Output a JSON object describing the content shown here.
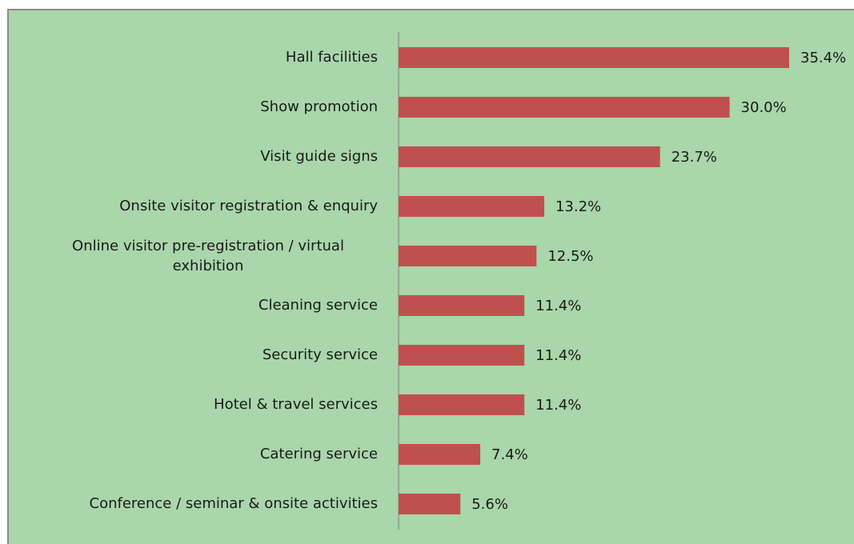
{
  "chart_data": {
    "type": "bar",
    "orientation": "horizontal",
    "categories": [
      "Hall facilities",
      "Show promotion",
      "Visit guide signs",
      "Onsite visitor registration & enquiry",
      "Online visitor pre-registration / virtual exhibition",
      "Cleaning service",
      "Security service",
      "Hotel & travel services",
      "Catering service",
      "Conference / seminar & onsite activities"
    ],
    "values": [
      35.4,
      30.0,
      23.7,
      13.2,
      12.5,
      11.4,
      11.4,
      11.4,
      7.4,
      5.6
    ],
    "value_labels": [
      "35.4%",
      "30.0%",
      "23.7%",
      "13.2%",
      "12.5%",
      "11.4%",
      "11.4%",
      "11.4%",
      "7.4%",
      "5.6%"
    ],
    "color": "#c0504d",
    "background": "#a9d6aa"
  }
}
